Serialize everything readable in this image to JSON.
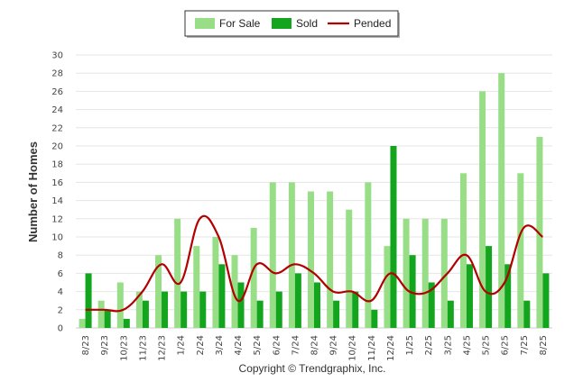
{
  "chart_data": {
    "type": "bar",
    "ylabel": "Number of Homes",
    "xlabel": "",
    "ylim": [
      0,
      30
    ],
    "yticks": [
      0,
      2,
      4,
      6,
      8,
      10,
      12,
      14,
      16,
      18,
      20,
      22,
      24,
      26,
      28,
      30
    ],
    "grid": true,
    "legend_position": "top-center",
    "categories": [
      "8/23",
      "9/23",
      "10/23",
      "11/23",
      "12/23",
      "1/24",
      "2/24",
      "3/24",
      "4/24",
      "5/24",
      "6/24",
      "7/24",
      "8/24",
      "9/24",
      "10/24",
      "11/24",
      "12/24",
      "1/25",
      "2/25",
      "3/25",
      "4/25",
      "5/25",
      "6/25",
      "7/25",
      "8/25"
    ],
    "series": [
      {
        "name": "For Sale",
        "type": "bar",
        "color": "#98de87",
        "values": [
          1,
          3,
          5,
          4,
          8,
          12,
          9,
          10,
          8,
          11,
          16,
          16,
          15,
          15,
          13,
          16,
          9,
          12,
          12,
          12,
          17,
          26,
          28,
          17,
          21
        ]
      },
      {
        "name": "Sold",
        "type": "bar",
        "color": "#13a51e",
        "values": [
          6,
          2,
          1,
          3,
          4,
          4,
          4,
          7,
          5,
          3,
          4,
          6,
          5,
          3,
          4,
          2,
          20,
          8,
          5,
          3,
          7,
          9,
          7,
          3,
          6
        ]
      },
      {
        "name": "Pended",
        "type": "line",
        "color": "#b30000",
        "values": [
          2,
          2,
          2,
          4,
          7,
          5,
          12,
          10,
          3,
          7,
          6,
          7,
          6,
          4,
          4,
          3,
          6,
          4,
          4,
          6,
          8,
          4,
          5,
          11,
          10
        ]
      }
    ],
    "footer": "Copyright © Trendgraphix, Inc."
  }
}
